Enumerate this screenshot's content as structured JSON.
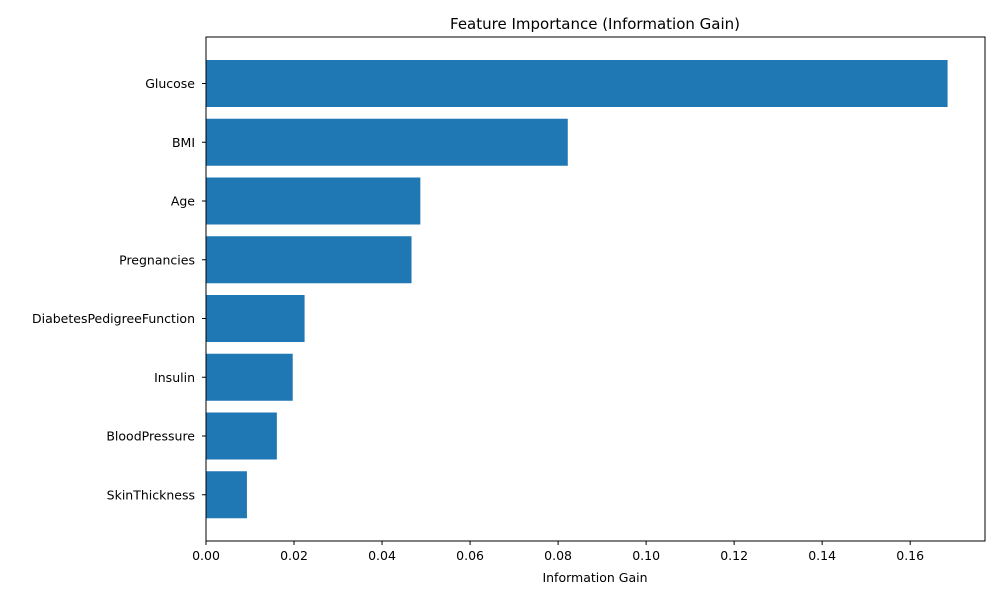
{
  "chart_data": {
    "type": "bar",
    "orientation": "horizontal",
    "title": "Feature Importance (Information Gain)",
    "xlabel": "Information Gain",
    "ylabel": "",
    "categories": [
      "Glucose",
      "BMI",
      "Age",
      "Pregnancies",
      "DiabetesPedigreeFunction",
      "Insulin",
      "BloodPressure",
      "SkinThickness"
    ],
    "values": [
      0.1685,
      0.0822,
      0.0487,
      0.0467,
      0.0224,
      0.0197,
      0.0161,
      0.0093
    ],
    "xlim": [
      0,
      0.177
    ],
    "xticks": [
      "0.00",
      "0.02",
      "0.04",
      "0.06",
      "0.08",
      "0.10",
      "0.12",
      "0.14",
      "0.16"
    ],
    "grid": false,
    "legend": "none",
    "bar_color": "#1f77b4"
  }
}
